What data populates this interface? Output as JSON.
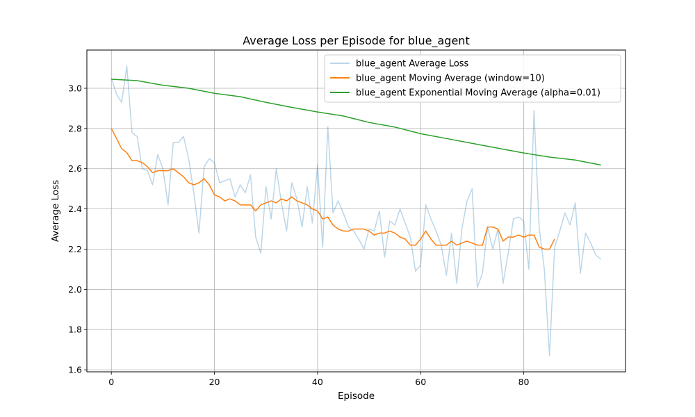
{
  "chart_data": {
    "type": "line",
    "title": "Average Loss per Episode for blue_agent",
    "xlabel": "Episode",
    "ylabel": "Average Loss",
    "xlim": [
      -4.75,
      99.75
    ],
    "ylim": [
      1.59,
      3.19
    ],
    "x_ticks": [
      0,
      20,
      40,
      60,
      80
    ],
    "y_ticks": [
      1.6,
      1.8,
      2.0,
      2.2,
      2.4,
      2.6,
      2.8,
      3.0
    ],
    "x_tick_labels": [
      "0",
      "20",
      "40",
      "60",
      "80"
    ],
    "y_tick_labels": [
      "1.6",
      "1.8",
      "2.0",
      "2.2",
      "2.4",
      "2.6",
      "2.8",
      "3.0"
    ],
    "grid": true,
    "legend_position": "top-right",
    "series": [
      {
        "name": "blue_agent Average Loss",
        "color": "#1f77b4",
        "opacity": 0.3,
        "x": [
          0,
          1,
          2,
          3,
          4,
          5,
          6,
          7,
          8,
          9,
          10,
          11,
          12,
          13,
          14,
          15,
          16,
          17,
          18,
          19,
          20,
          21,
          22,
          23,
          24,
          25,
          26,
          27,
          28,
          29,
          30,
          31,
          32,
          33,
          34,
          35,
          36,
          37,
          38,
          39,
          40,
          41,
          42,
          43,
          44,
          45,
          46,
          47,
          48,
          49,
          50,
          51,
          52,
          53,
          54,
          55,
          56,
          57,
          58,
          59,
          60,
          61,
          62,
          63,
          64,
          65,
          66,
          67,
          68,
          69,
          70,
          71,
          72,
          73,
          74,
          75,
          76,
          77,
          78,
          79,
          80,
          81,
          82,
          83,
          84,
          85,
          86,
          87,
          88,
          89,
          90,
          91,
          92,
          93,
          94,
          95
        ],
        "y": [
          3.05,
          2.97,
          2.93,
          3.11,
          2.78,
          2.76,
          2.6,
          2.59,
          2.52,
          2.67,
          2.6,
          2.42,
          2.73,
          2.73,
          2.76,
          2.65,
          2.48,
          2.28,
          2.61,
          2.65,
          2.63,
          2.53,
          2.54,
          2.55,
          2.46,
          2.52,
          2.48,
          2.57,
          2.26,
          2.18,
          2.51,
          2.35,
          2.6,
          2.43,
          2.29,
          2.53,
          2.45,
          2.31,
          2.51,
          2.33,
          2.62,
          2.21,
          2.81,
          2.38,
          2.44,
          2.38,
          2.31,
          2.29,
          2.25,
          2.2,
          2.3,
          2.29,
          2.39,
          2.16,
          2.34,
          2.32,
          2.4,
          2.33,
          2.26,
          2.09,
          2.12,
          2.42,
          2.35,
          2.29,
          2.22,
          2.07,
          2.28,
          2.03,
          2.3,
          2.44,
          2.5,
          2.01,
          2.08,
          2.31,
          2.2,
          2.3,
          2.03,
          2.18,
          2.35,
          2.36,
          2.34,
          2.1,
          2.89,
          2.31,
          2.1,
          1.67,
          2.21,
          2.29,
          2.38,
          2.32,
          2.43,
          2.08,
          2.28,
          2.23,
          2.17,
          2.15
        ]
      },
      {
        "name": "blue_agent Moving Average (window=10)",
        "color": "#ff7f0e",
        "opacity": 1,
        "x": [
          0,
          1,
          2,
          3,
          4,
          5,
          6,
          7,
          8,
          9,
          10,
          11,
          12,
          13,
          14,
          15,
          16,
          17,
          18,
          19,
          20,
          21,
          22,
          23,
          24,
          25,
          26,
          27,
          28,
          29,
          30,
          31,
          32,
          33,
          34,
          35,
          36,
          37,
          38,
          39,
          40,
          41,
          42,
          43,
          44,
          45,
          46,
          47,
          48,
          49,
          50,
          51,
          52,
          53,
          54,
          55,
          56,
          57,
          58,
          59,
          60,
          61,
          62,
          63,
          64,
          65,
          66,
          67,
          68,
          69,
          70,
          71,
          72,
          73,
          74,
          75,
          76,
          77,
          78,
          79,
          80,
          81,
          82,
          83,
          84,
          85,
          86
        ],
        "y": [
          2.8,
          2.75,
          2.7,
          2.68,
          2.64,
          2.64,
          2.63,
          2.61,
          2.58,
          2.59,
          2.59,
          2.59,
          2.6,
          2.58,
          2.56,
          2.53,
          2.52,
          2.53,
          2.55,
          2.52,
          2.47,
          2.46,
          2.44,
          2.45,
          2.44,
          2.42,
          2.42,
          2.42,
          2.39,
          2.42,
          2.43,
          2.44,
          2.43,
          2.45,
          2.44,
          2.46,
          2.44,
          2.43,
          2.42,
          2.4,
          2.39,
          2.35,
          2.36,
          2.32,
          2.3,
          2.29,
          2.29,
          2.3,
          2.3,
          2.3,
          2.29,
          2.27,
          2.28,
          2.28,
          2.29,
          2.28,
          2.26,
          2.25,
          2.22,
          2.22,
          2.25,
          2.29,
          2.25,
          2.22,
          2.22,
          2.22,
          2.24,
          2.22,
          2.23,
          2.24,
          2.23,
          2.22,
          2.22,
          2.31,
          2.31,
          2.3,
          2.24,
          2.26,
          2.26,
          2.27,
          2.26,
          2.27,
          2.27,
          2.21,
          2.2,
          2.2,
          2.25
        ]
      },
      {
        "name": "blue_agent Exponential Moving Average (alpha=0.01)",
        "color": "#2ca02c",
        "opacity": 1,
        "x": [
          0,
          5,
          10,
          15,
          20,
          25,
          30,
          35,
          40,
          45,
          50,
          55,
          60,
          65,
          70,
          75,
          80,
          85,
          90,
          95
        ],
        "y": [
          3.045,
          3.038,
          3.015,
          3.0,
          2.975,
          2.958,
          2.93,
          2.905,
          2.882,
          2.862,
          2.83,
          2.807,
          2.774,
          2.75,
          2.726,
          2.702,
          2.678,
          2.658,
          2.643,
          2.618
        ]
      }
    ]
  }
}
